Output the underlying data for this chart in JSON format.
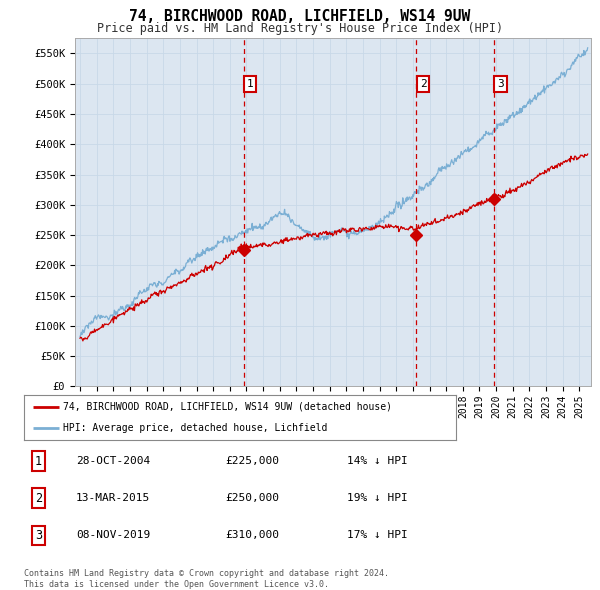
{
  "title": "74, BIRCHWOOD ROAD, LICHFIELD, WS14 9UW",
  "subtitle": "Price paid vs. HM Land Registry's House Price Index (HPI)",
  "background_color": "#ffffff",
  "plot_bg_color": "#dce6f1",
  "legend_label_red": "74, BIRCHWOOD ROAD, LICHFIELD, WS14 9UW (detached house)",
  "legend_label_blue": "HPI: Average price, detached house, Lichfield",
  "transactions": [
    {
      "date_num": 2004.83,
      "price": 225000,
      "label": "1"
    },
    {
      "date_num": 2015.21,
      "price": 250000,
      "label": "2"
    },
    {
      "date_num": 2019.86,
      "price": 310000,
      "label": "3"
    }
  ],
  "transaction_notes": [
    {
      "label": "1",
      "date": "28-OCT-2004",
      "price": "£225,000",
      "pct": "14% ↓ HPI"
    },
    {
      "label": "2",
      "date": "13-MAR-2015",
      "price": "£250,000",
      "pct": "19% ↓ HPI"
    },
    {
      "label": "3",
      "date": "08-NOV-2019",
      "price": "£310,000",
      "pct": "17% ↓ HPI"
    }
  ],
  "footer": "Contains HM Land Registry data © Crown copyright and database right 2024.\nThis data is licensed under the Open Government Licence v3.0.",
  "ylim": [
    0,
    575000
  ],
  "yticks": [
    0,
    50000,
    100000,
    150000,
    200000,
    250000,
    300000,
    350000,
    400000,
    450000,
    500000,
    550000
  ],
  "ytick_labels": [
    "£0",
    "£50K",
    "£100K",
    "£150K",
    "£200K",
    "£250K",
    "£300K",
    "£350K",
    "£400K",
    "£450K",
    "£500K",
    "£550K"
  ],
  "red_color": "#cc0000",
  "blue_color": "#7bafd4",
  "vline_color": "#cc0000",
  "grid_color": "#c8d8e8",
  "xmin": 1994.7,
  "xmax": 2025.7
}
